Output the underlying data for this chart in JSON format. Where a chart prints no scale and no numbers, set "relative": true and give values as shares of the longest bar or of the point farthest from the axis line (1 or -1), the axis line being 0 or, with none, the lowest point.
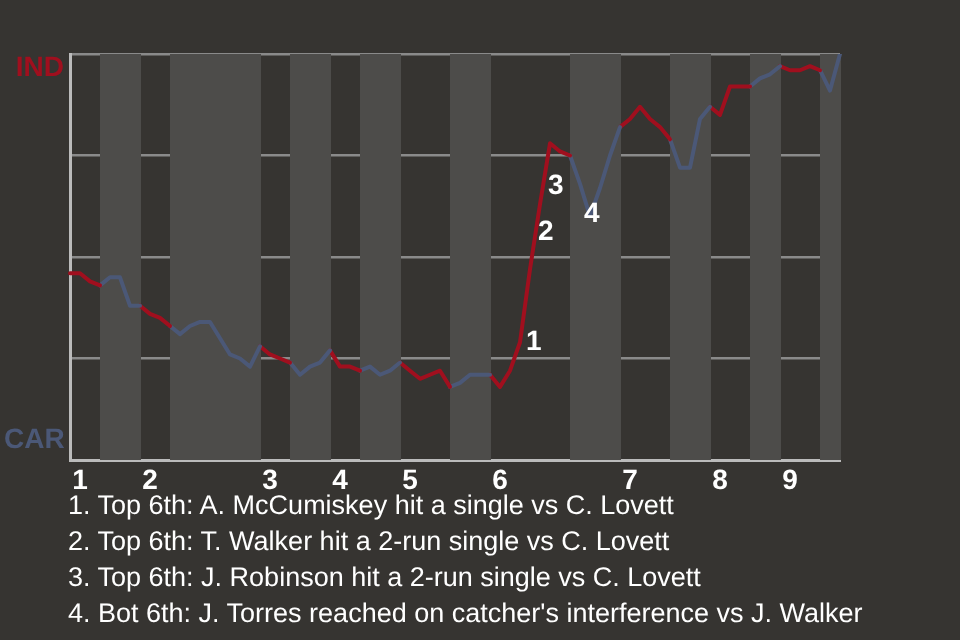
{
  "chart_data": {
    "type": "line",
    "relative": true,
    "categories": [
      null,
      "1",
      null,
      null,
      null,
      null,
      null,
      null,
      "2",
      null,
      null,
      null,
      null,
      null,
      null,
      null,
      null,
      null,
      null,
      null,
      "3",
      null,
      null,
      null,
      null,
      null,
      null,
      "4",
      null,
      null,
      null,
      null,
      null,
      null,
      "5",
      null,
      null,
      null,
      null,
      null,
      null,
      null,
      null,
      "6",
      null,
      null,
      null,
      null,
      null,
      null,
      null,
      null,
      null,
      null,
      null,
      null,
      "7",
      null,
      null,
      null,
      null,
      null,
      null,
      null,
      null,
      "8",
      null,
      null,
      null,
      null,
      null,
      null,
      "9",
      null,
      null,
      null,
      null,
      null
    ],
    "series": [
      {
        "color": "#a00f1e",
        "values": [
          0.46,
          0.46,
          0.44,
          0.43,
          null,
          null,
          null,
          null,
          null,
          null,
          null,
          null,
          null,
          null,
          null,
          null,
          null,
          null,
          null,
          null,
          null,
          null,
          null,
          null,
          null,
          null,
          null,
          null,
          null,
          null,
          null,
          null,
          null,
          null,
          null,
          null,
          null,
          null,
          null,
          null,
          null,
          null,
          null,
          null,
          null,
          null,
          null,
          null,
          null,
          null,
          null,
          null,
          null,
          null,
          null,
          null,
          null,
          null,
          null,
          null,
          null,
          null,
          null,
          null,
          null,
          null,
          null,
          null,
          null,
          null,
          null,
          null,
          null,
          null,
          null,
          null,
          null,
          null
        ]
      },
      {
        "color": "#4b5877",
        "values": [
          null,
          null,
          null,
          0.43,
          0.45,
          0.45,
          0.38,
          0.38,
          null,
          null,
          null,
          null,
          null,
          null,
          null,
          null,
          null,
          null,
          null,
          null,
          null,
          null,
          null,
          null,
          null,
          null,
          null,
          null,
          null,
          null,
          null,
          null,
          null,
          null,
          null,
          null,
          null,
          null,
          null,
          null,
          null,
          null,
          null,
          null,
          null,
          null,
          null,
          null,
          null,
          null,
          null,
          null,
          null,
          null,
          null,
          null,
          null,
          null,
          null,
          null,
          null,
          null,
          null,
          null,
          null,
          null,
          null,
          null,
          null,
          null,
          null,
          null,
          null,
          null,
          null,
          null,
          null,
          null
        ]
      },
      {
        "color": "#a00f1e",
        "values": [
          null,
          null,
          null,
          null,
          null,
          null,
          null,
          0.38,
          0.36,
          0.35,
          0.33,
          null,
          null,
          null,
          null,
          null,
          null,
          null,
          null,
          null,
          null,
          null,
          null,
          null,
          null,
          null,
          null,
          null,
          null,
          null,
          null,
          null,
          null,
          null,
          null,
          null,
          null,
          null,
          null,
          null,
          null,
          null,
          null,
          null,
          null,
          null,
          null,
          null,
          null,
          null,
          null,
          null,
          null,
          null,
          null,
          null,
          null,
          null,
          null,
          null,
          null,
          null,
          null,
          null,
          null,
          null,
          null,
          null,
          null,
          null,
          null,
          null,
          null,
          null,
          null,
          null,
          null,
          null
        ]
      },
      {
        "color": "#4b5877",
        "values": [
          null,
          null,
          null,
          null,
          null,
          null,
          null,
          null,
          null,
          null,
          0.33,
          0.31,
          0.33,
          0.34,
          0.34,
          0.3,
          0.26,
          0.25,
          0.23,
          0.28,
          null,
          null,
          null,
          null,
          null,
          null,
          null,
          null,
          null,
          null,
          null,
          null,
          null,
          null,
          null,
          null,
          null,
          null,
          null,
          null,
          null,
          null,
          null,
          null,
          null,
          null,
          null,
          null,
          null,
          null,
          null,
          null,
          null,
          null,
          null,
          null,
          null,
          null,
          null,
          null,
          null,
          null,
          null,
          null,
          null,
          null,
          null,
          null,
          null,
          null,
          null,
          null,
          null,
          null,
          null,
          null,
          null,
          null
        ]
      },
      {
        "color": "#a00f1e",
        "values": [
          null,
          null,
          null,
          null,
          null,
          null,
          null,
          null,
          null,
          null,
          null,
          null,
          null,
          null,
          null,
          null,
          null,
          null,
          null,
          0.28,
          0.26,
          0.25,
          0.24,
          null,
          null,
          null,
          null,
          null,
          null,
          null,
          null,
          null,
          null,
          null,
          null,
          null,
          null,
          null,
          null,
          null,
          null,
          null,
          null,
          null,
          null,
          null,
          null,
          null,
          null,
          null,
          null,
          null,
          null,
          null,
          null,
          null,
          null,
          null,
          null,
          null,
          null,
          null,
          null,
          null,
          null,
          null,
          null,
          null,
          null,
          null,
          null,
          null,
          null,
          null,
          null,
          null,
          null,
          null
        ]
      },
      {
        "color": "#4b5877",
        "values": [
          null,
          null,
          null,
          null,
          null,
          null,
          null,
          null,
          null,
          null,
          null,
          null,
          null,
          null,
          null,
          null,
          null,
          null,
          null,
          null,
          null,
          null,
          0.24,
          0.21,
          0.23,
          0.24,
          0.27,
          null,
          null,
          null,
          null,
          null,
          null,
          null,
          null,
          null,
          null,
          null,
          null,
          null,
          null,
          null,
          null,
          null,
          null,
          null,
          null,
          null,
          null,
          null,
          null,
          null,
          null,
          null,
          null,
          null,
          null,
          null,
          null,
          null,
          null,
          null,
          null,
          null,
          null,
          null,
          null,
          null,
          null,
          null,
          null,
          null,
          null,
          null,
          null,
          null,
          null,
          null
        ]
      },
      {
        "color": "#a00f1e",
        "values": [
          null,
          null,
          null,
          null,
          null,
          null,
          null,
          null,
          null,
          null,
          null,
          null,
          null,
          null,
          null,
          null,
          null,
          null,
          null,
          null,
          null,
          null,
          null,
          null,
          null,
          null,
          0.27,
          0.23,
          0.23,
          0.22,
          null,
          null,
          null,
          null,
          null,
          null,
          null,
          null,
          null,
          null,
          null,
          null,
          null,
          null,
          null,
          null,
          null,
          null,
          null,
          null,
          null,
          null,
          null,
          null,
          null,
          null,
          null,
          null,
          null,
          null,
          null,
          null,
          null,
          null,
          null,
          null,
          null,
          null,
          null,
          null,
          null,
          null,
          null,
          null,
          null,
          null,
          null,
          null
        ]
      },
      {
        "color": "#4b5877",
        "values": [
          null,
          null,
          null,
          null,
          null,
          null,
          null,
          null,
          null,
          null,
          null,
          null,
          null,
          null,
          null,
          null,
          null,
          null,
          null,
          null,
          null,
          null,
          null,
          null,
          null,
          null,
          null,
          null,
          null,
          0.22,
          0.23,
          0.21,
          0.22,
          0.24,
          null,
          null,
          null,
          null,
          null,
          null,
          null,
          null,
          null,
          null,
          null,
          null,
          null,
          null,
          null,
          null,
          null,
          null,
          null,
          null,
          null,
          null,
          null,
          null,
          null,
          null,
          null,
          null,
          null,
          null,
          null,
          null,
          null,
          null,
          null,
          null,
          null,
          null,
          null,
          null,
          null,
          null,
          null,
          null
        ]
      },
      {
        "color": "#a00f1e",
        "values": [
          null,
          null,
          null,
          null,
          null,
          null,
          null,
          null,
          null,
          null,
          null,
          null,
          null,
          null,
          null,
          null,
          null,
          null,
          null,
          null,
          null,
          null,
          null,
          null,
          null,
          null,
          null,
          null,
          null,
          null,
          null,
          null,
          null,
          0.24,
          0.22,
          0.2,
          0.21,
          0.22,
          0.18,
          null,
          null,
          null,
          null,
          null,
          null,
          null,
          null,
          null,
          null,
          null,
          null,
          null,
          null,
          null,
          null,
          null,
          null,
          null,
          null,
          null,
          null,
          null,
          null,
          null,
          null,
          null,
          null,
          null,
          null,
          null,
          null,
          null,
          null,
          null,
          null,
          null,
          null,
          null
        ]
      },
      {
        "color": "#4b5877",
        "values": [
          null,
          null,
          null,
          null,
          null,
          null,
          null,
          null,
          null,
          null,
          null,
          null,
          null,
          null,
          null,
          null,
          null,
          null,
          null,
          null,
          null,
          null,
          null,
          null,
          null,
          null,
          null,
          null,
          null,
          null,
          null,
          null,
          null,
          null,
          null,
          null,
          null,
          null,
          0.18,
          0.19,
          0.21,
          0.21,
          0.21,
          null,
          null,
          null,
          null,
          null,
          null,
          null,
          null,
          null,
          null,
          null,
          null,
          null,
          null,
          null,
          null,
          null,
          null,
          null,
          null,
          null,
          null,
          null,
          null,
          null,
          null,
          null,
          null,
          null,
          null,
          null,
          null,
          null,
          null,
          null
        ]
      },
      {
        "color": "#a00f1e",
        "values": [
          null,
          null,
          null,
          null,
          null,
          null,
          null,
          null,
          null,
          null,
          null,
          null,
          null,
          null,
          null,
          null,
          null,
          null,
          null,
          null,
          null,
          null,
          null,
          null,
          null,
          null,
          null,
          null,
          null,
          null,
          null,
          null,
          null,
          null,
          null,
          null,
          null,
          null,
          null,
          null,
          null,
          null,
          0.21,
          0.18,
          0.22,
          0.29,
          0.47,
          0.63,
          0.78,
          0.76,
          0.75,
          null,
          null,
          null,
          null,
          null,
          null,
          null,
          null,
          null,
          null,
          null,
          null,
          null,
          null,
          null,
          null,
          null,
          null,
          null,
          null,
          null,
          null,
          null,
          null,
          null,
          null,
          null
        ]
      },
      {
        "color": "#4b5877",
        "values": [
          null,
          null,
          null,
          null,
          null,
          null,
          null,
          null,
          null,
          null,
          null,
          null,
          null,
          null,
          null,
          null,
          null,
          null,
          null,
          null,
          null,
          null,
          null,
          null,
          null,
          null,
          null,
          null,
          null,
          null,
          null,
          null,
          null,
          null,
          null,
          null,
          null,
          null,
          null,
          null,
          null,
          null,
          null,
          null,
          null,
          null,
          null,
          null,
          null,
          null,
          0.75,
          0.68,
          0.6,
          0.67,
          0.75,
          0.82,
          null,
          null,
          null,
          null,
          null,
          null,
          null,
          null,
          null,
          null,
          null,
          null,
          null,
          null,
          null,
          null,
          null,
          null,
          null,
          null,
          null,
          null
        ]
      },
      {
        "color": "#a00f1e",
        "values": [
          null,
          null,
          null,
          null,
          null,
          null,
          null,
          null,
          null,
          null,
          null,
          null,
          null,
          null,
          null,
          null,
          null,
          null,
          null,
          null,
          null,
          null,
          null,
          null,
          null,
          null,
          null,
          null,
          null,
          null,
          null,
          null,
          null,
          null,
          null,
          null,
          null,
          null,
          null,
          null,
          null,
          null,
          null,
          null,
          null,
          null,
          null,
          null,
          null,
          null,
          null,
          null,
          null,
          null,
          null,
          0.82,
          0.84,
          0.87,
          0.84,
          0.82,
          0.79,
          null,
          null,
          null,
          null,
          null,
          null,
          null,
          null,
          null,
          null,
          null,
          null,
          null,
          null,
          null,
          null,
          null
        ]
      },
      {
        "color": "#4b5877",
        "values": [
          null,
          null,
          null,
          null,
          null,
          null,
          null,
          null,
          null,
          null,
          null,
          null,
          null,
          null,
          null,
          null,
          null,
          null,
          null,
          null,
          null,
          null,
          null,
          null,
          null,
          null,
          null,
          null,
          null,
          null,
          null,
          null,
          null,
          null,
          null,
          null,
          null,
          null,
          null,
          null,
          null,
          null,
          null,
          null,
          null,
          null,
          null,
          null,
          null,
          null,
          null,
          null,
          null,
          null,
          null,
          null,
          null,
          null,
          null,
          null,
          0.79,
          0.72,
          0.72,
          0.84,
          0.87,
          null,
          null,
          null,
          null,
          null,
          null,
          null,
          null,
          null,
          null,
          null,
          null,
          null
        ]
      },
      {
        "color": "#a00f1e",
        "values": [
          null,
          null,
          null,
          null,
          null,
          null,
          null,
          null,
          null,
          null,
          null,
          null,
          null,
          null,
          null,
          null,
          null,
          null,
          null,
          null,
          null,
          null,
          null,
          null,
          null,
          null,
          null,
          null,
          null,
          null,
          null,
          null,
          null,
          null,
          null,
          null,
          null,
          null,
          null,
          null,
          null,
          null,
          null,
          null,
          null,
          null,
          null,
          null,
          null,
          null,
          null,
          null,
          null,
          null,
          null,
          null,
          null,
          null,
          null,
          null,
          null,
          null,
          null,
          null,
          0.87,
          0.85,
          0.92,
          0.92,
          0.92,
          null,
          null,
          null,
          null,
          null,
          null,
          null,
          null,
          null
        ]
      },
      {
        "color": "#4b5877",
        "values": [
          null,
          null,
          null,
          null,
          null,
          null,
          null,
          null,
          null,
          null,
          null,
          null,
          null,
          null,
          null,
          null,
          null,
          null,
          null,
          null,
          null,
          null,
          null,
          null,
          null,
          null,
          null,
          null,
          null,
          null,
          null,
          null,
          null,
          null,
          null,
          null,
          null,
          null,
          null,
          null,
          null,
          null,
          null,
          null,
          null,
          null,
          null,
          null,
          null,
          null,
          null,
          null,
          null,
          null,
          null,
          null,
          null,
          null,
          null,
          null,
          null,
          null,
          null,
          null,
          null,
          null,
          null,
          null,
          0.92,
          0.94,
          0.95,
          0.97,
          null,
          null,
          null,
          null,
          null,
          null
        ]
      },
      {
        "color": "#a00f1e",
        "values": [
          null,
          null,
          null,
          null,
          null,
          null,
          null,
          null,
          null,
          null,
          null,
          null,
          null,
          null,
          null,
          null,
          null,
          null,
          null,
          null,
          null,
          null,
          null,
          null,
          null,
          null,
          null,
          null,
          null,
          null,
          null,
          null,
          null,
          null,
          null,
          null,
          null,
          null,
          null,
          null,
          null,
          null,
          null,
          null,
          null,
          null,
          null,
          null,
          null,
          null,
          null,
          null,
          null,
          null,
          null,
          null,
          null,
          null,
          null,
          null,
          null,
          null,
          null,
          null,
          null,
          null,
          null,
          null,
          null,
          null,
          null,
          0.97,
          0.96,
          0.96,
          0.97,
          0.96,
          null,
          null
        ]
      },
      {
        "color": "#4b5877",
        "values": [
          null,
          null,
          null,
          null,
          null,
          null,
          null,
          null,
          null,
          null,
          null,
          null,
          null,
          null,
          null,
          null,
          null,
          null,
          null,
          null,
          null,
          null,
          null,
          null,
          null,
          null,
          null,
          null,
          null,
          null,
          null,
          null,
          null,
          null,
          null,
          null,
          null,
          null,
          null,
          null,
          null,
          null,
          null,
          null,
          null,
          null,
          null,
          null,
          null,
          null,
          null,
          null,
          null,
          null,
          null,
          null,
          null,
          null,
          null,
          null,
          null,
          null,
          null,
          null,
          null,
          null,
          null,
          null,
          null,
          null,
          null,
          null,
          null,
          null,
          null,
          0.96,
          0.91,
          1.0
        ]
      }
    ],
    "grid": "y",
    "annotations": [
      "IND",
      "CAR",
      "1",
      "2",
      "3",
      "4",
      "1. Top 6th: A. McCumiskey hit a single vs C. Lovett",
      "2. Top 6th: T. Walker hit a 2-run single vs C. Lovett",
      "3. Top 6th: J. Robinson hit a 2-run single vs C. Lovett",
      "4. Bot 6th: J. Torres reached on catcher's interference vs J. Walker"
    ]
  }
}
